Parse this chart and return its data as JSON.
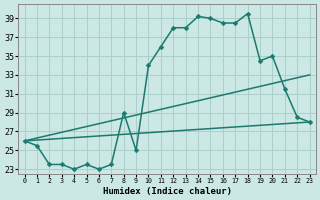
{
  "xlabel": "Humidex (Indice chaleur)",
  "ylabel": "",
  "background_color": "#cce8e4",
  "grid_color": "#aacfcb",
  "line_color": "#1a7a6e",
  "xlim": [
    -0.5,
    23.5
  ],
  "ylim": [
    22.5,
    40.5
  ],
  "yticks": [
    23,
    25,
    27,
    29,
    31,
    33,
    35,
    37,
    39
  ],
  "xticks": [
    0,
    1,
    2,
    3,
    4,
    5,
    6,
    7,
    8,
    9,
    10,
    11,
    12,
    13,
    14,
    15,
    16,
    17,
    18,
    19,
    20,
    21,
    22,
    23
  ],
  "series1_x": [
    0,
    1,
    2,
    3,
    4,
    5,
    6,
    7,
    8,
    9,
    10,
    11,
    12,
    13,
    14,
    15,
    16,
    17,
    18,
    19,
    20,
    21,
    22,
    23
  ],
  "series1_y": [
    26.0,
    25.5,
    23.5,
    23.5,
    23.0,
    23.5,
    23.0,
    23.5,
    29.0,
    25.0,
    34.0,
    36.0,
    38.0,
    38.0,
    39.2,
    39.0,
    38.5,
    38.5,
    39.5,
    34.5,
    35.0,
    31.5,
    28.5,
    28.0
  ],
  "series2_x": [
    0,
    23
  ],
  "series2_y": [
    26.0,
    28.0
  ],
  "series3_x": [
    0,
    23
  ],
  "series3_y": [
    26.0,
    33.0
  ],
  "marker_size": 2.5,
  "line_width": 1.1
}
